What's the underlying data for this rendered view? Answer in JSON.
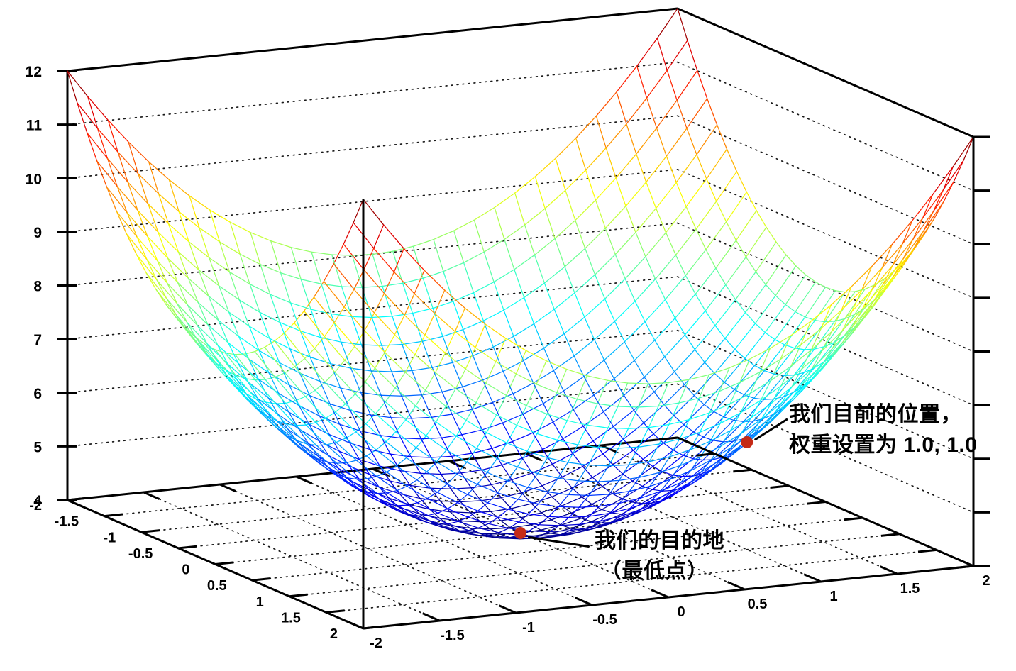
{
  "figure": {
    "background": "#ffffff",
    "marker_color": "#c52a16",
    "axis_color": "#000000",
    "grid_dot_color": "#1a1a1a"
  },
  "annotations": {
    "current_position": {
      "line1": "我们目前的位置，",
      "line2": "权重设置为 1.0, 1.0"
    },
    "destination": {
      "line1": "我们的目的地",
      "line2": "（最低点）"
    }
  },
  "chart_data": {
    "type": "surface3d-wireframe",
    "title": "",
    "function": "z = x^2 + y^2 + 4",
    "x_range": [
      -2,
      2
    ],
    "y_range": [
      -2,
      2
    ],
    "z_range": [
      4,
      12
    ],
    "mesh_divisions": 30,
    "colormap": "jet",
    "wall_grid": "dotted",
    "floor_grid": "dotted",
    "legend_position": "none",
    "x_ticks": [
      -2,
      -1.5,
      -1,
      -0.5,
      0,
      0.5,
      1,
      1.5,
      2
    ],
    "x_tick_labels": [
      "-2",
      "-1.5",
      "-1",
      "-0.5",
      "0",
      "0.5",
      "1",
      "1.5",
      "2"
    ],
    "y_ticks": [
      -2,
      -1.5,
      -1,
      -0.5,
      0,
      0.5,
      1,
      1.5,
      2
    ],
    "y_tick_labels": [
      "-2",
      "-1.5",
      "-1",
      "-0.5",
      "0",
      "0.5",
      "1",
      "1.5",
      "2"
    ],
    "z_ticks": [
      4,
      5,
      6,
      7,
      8,
      9,
      10,
      11,
      12
    ],
    "z_tick_labels": [
      "4",
      "5",
      "6",
      "7",
      "8",
      "9",
      "10",
      "11",
      "12"
    ],
    "wall_grid_z_levels": [
      5,
      6,
      7,
      8,
      9,
      10,
      11
    ],
    "floor_grid_levels": [
      -1.5,
      -1,
      -0.5,
      0,
      0.5,
      1,
      1.5
    ],
    "points": [
      {
        "x": 1,
        "y": 1,
        "z": 6,
        "label": "我们目前的位置，权重设置为 1.0, 1.0"
      },
      {
        "x": 0,
        "y": 0,
        "z": 4,
        "label": "我们的目的地（最低点）"
      }
    ]
  }
}
